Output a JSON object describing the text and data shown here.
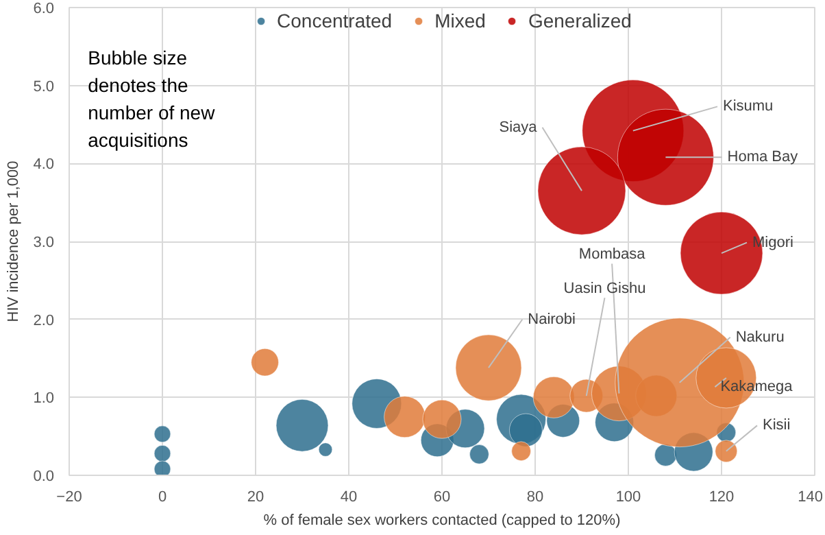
{
  "chart_data": {
    "type": "bubble",
    "xlabel": "% of female sex workers contacted (capped to 120%)",
    "ylabel": "HIV incidence per 1,000",
    "xlim": [
      -20,
      140
    ],
    "xticks": [
      -20,
      0,
      20,
      40,
      60,
      80,
      100,
      120,
      140
    ],
    "ylim": [
      0,
      6
    ],
    "yticks": [
      {
        "value": 0,
        "label": "0.0"
      },
      {
        "value": 1,
        "label": "1.0"
      },
      {
        "value": 2,
        "label": "2.0"
      },
      {
        "value": 3,
        "label": "3.0"
      },
      {
        "value": 4,
        "label": "4.0"
      },
      {
        "value": 5,
        "label": "5.0"
      },
      {
        "value": 6,
        "label": "6.0"
      }
    ],
    "grid": true,
    "legend": "top",
    "series": [
      {
        "name": "Concentrated",
        "color": "#2e6f8e",
        "x": [
          0,
          0,
          0,
          30,
          35,
          46,
          59,
          65,
          68,
          77,
          78,
          86,
          97,
          108,
          114,
          121
        ],
        "values": [
          0.53,
          0.28,
          0.08,
          0.64,
          0.33,
          0.92,
          0.45,
          0.6,
          0.27,
          0.72,
          0.58,
          0.7,
          0.68,
          0.26,
          0.3,
          0.55
        ],
        "sizes": [
          0.016,
          0.016,
          0.016,
          0.163,
          0.011,
          0.147,
          0.065,
          0.089,
          0.022,
          0.147,
          0.065,
          0.065,
          0.089,
          0.029,
          0.089,
          0.022
        ]
      },
      {
        "name": "Mixed",
        "color": "#e07b39",
        "x": [
          22,
          52,
          60,
          70,
          77,
          84,
          91,
          98,
          106,
          111,
          121,
          121
        ],
        "values": [
          1.45,
          0.75,
          0.72,
          1.38,
          0.31,
          1.0,
          1.02,
          1.05,
          1.02,
          1.19,
          1.25,
          0.31
        ],
        "sizes": [
          0.045,
          0.102,
          0.089,
          0.261,
          0.022,
          0.102,
          0.065,
          0.181,
          0.102,
          1,
          0.219,
          0.029
        ]
      },
      {
        "name": "Generalized",
        "color": "#c00000",
        "x": [
          101,
          108,
          90,
          120
        ],
        "values": [
          4.42,
          4.08,
          3.65,
          2.85
        ],
        "sizes": [
          0.62,
          0.555,
          0.464,
          0.407
        ]
      }
    ],
    "annotations": [
      "Bubble size denotes the number of new acquisitions",
      {
        "text": "Kisumu",
        "x": 101,
        "y": 4.42
      },
      {
        "text": "Homa Bay",
        "x": 108,
        "y": 4.08
      },
      {
        "text": "Siaya",
        "x": 90,
        "y": 3.65
      },
      {
        "text": "Migori",
        "x": 120,
        "y": 2.85
      },
      {
        "text": "Mombasa",
        "x": 98,
        "y": 1.05
      },
      {
        "text": "Uasin Gishu",
        "x": 91,
        "y": 1.02
      },
      {
        "text": "Nairobi",
        "x": 70,
        "y": 1.38
      },
      {
        "text": "Nakuru",
        "x": 111,
        "y": 1.19
      },
      {
        "text": "Kakamega",
        "x": 121,
        "y": 1.25
      },
      {
        "text": "Kisii",
        "x": 121,
        "y": 0.31
      }
    ]
  }
}
